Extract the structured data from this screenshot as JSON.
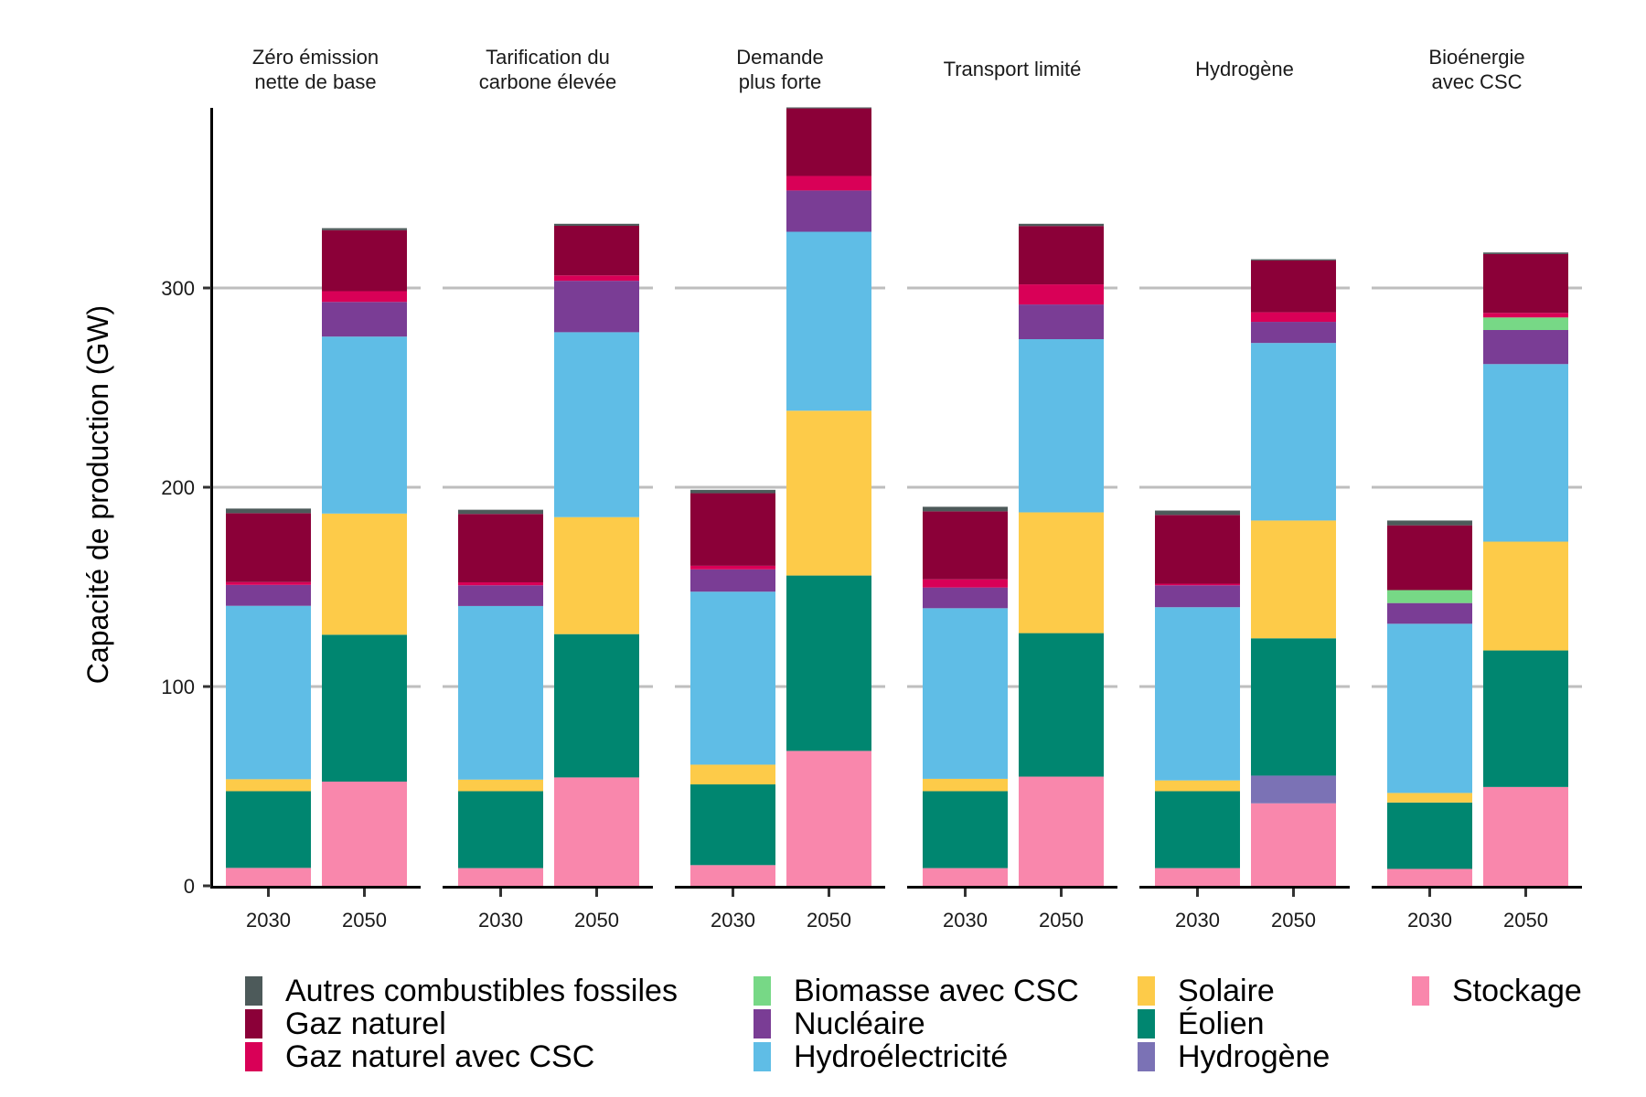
{
  "chart_data": {
    "type": "bar",
    "stacked": true,
    "faceted": true,
    "title": "",
    "xlabel": "",
    "ylabel": "Capacité de production (GW)",
    "ylim": [
      0,
      390
    ],
    "yticks": [
      0,
      100,
      200,
      300
    ],
    "ytick_labels": [
      "0",
      "100",
      "200",
      "300"
    ],
    "grid": "horizontal major",
    "legend_position": "bottom",
    "categories": [
      "2030",
      "2050"
    ],
    "series_order_bottom_to_top": [
      "Stockage",
      "Hydrogène",
      "Éolien",
      "Solaire",
      "Hydroélectricité",
      "Nucléaire",
      "Biomasse avec CSC",
      "Gaz naturel avec CSC",
      "Gaz naturel",
      "Autres combustibles fossiles"
    ],
    "colors": {
      "Autres combustibles fossiles": "#4d5a5a",
      "Gaz naturel": "#8b0038",
      "Gaz naturel avec CSC": "#d90057",
      "Biomasse avec CSC": "#77d886",
      "Nucléaire": "#7a3d95",
      "Hydroélectricité": "#5fbde6",
      "Solaire": "#fdcb49",
      "Éolien": "#008670",
      "Hydrogène": "#7b72b5",
      "Stockage": "#f987ac"
    },
    "facets": [
      {
        "title": [
          "Zéro émission",
          "nette de base"
        ],
        "bars": [
          {
            "x": "2030",
            "values": {
              "Stockage": 9,
              "Hydrogène": 0,
              "Éolien": 38.5,
              "Solaire": 6,
              "Hydroélectricité": 87,
              "Nucléaire": 10.5,
              "Biomasse avec CSC": 0,
              "Gaz naturel avec CSC": 1.4,
              "Gaz naturel": 34.6,
              "Autres combustibles fossiles": 2.3
            }
          },
          {
            "x": "2050",
            "values": {
              "Stockage": 52.3,
              "Hydrogène": 0,
              "Éolien": 73.7,
              "Solaire": 60.8,
              "Hydroélectricité": 88.8,
              "Nucléaire": 17.4,
              "Biomasse avec CSC": 0,
              "Gaz naturel avec CSC": 5.4,
              "Gaz naturel": 30.6,
              "Autres combustibles fossiles": 1
            }
          }
        ]
      },
      {
        "title": [
          "Tarification du",
          "carbone élevée"
        ],
        "bars": [
          {
            "x": "2030",
            "values": {
              "Stockage": 8.9,
              "Hydrogène": 0,
              "Éolien": 38.6,
              "Solaire": 5.8,
              "Hydroélectricité": 87.1,
              "Nucléaire": 10.4,
              "Biomasse avec CSC": 0,
              "Gaz naturel avec CSC": 1.5,
              "Gaz naturel": 34.3,
              "Autres combustibles fossiles": 2.1
            }
          },
          {
            "x": "2050",
            "values": {
              "Stockage": 54.4,
              "Hydrogène": 0,
              "Éolien": 71.9,
              "Solaire": 58.7,
              "Hydroélectricité": 92.8,
              "Nucléaire": 25.8,
              "Biomasse avec CSC": 0,
              "Gaz naturel avec CSC": 2.7,
              "Gaz naturel": 24.9,
              "Autres combustibles fossiles": 1
            }
          }
        ]
      },
      {
        "title": [
          "Demande",
          "plus forte"
        ],
        "bars": [
          {
            "x": "2030",
            "values": {
              "Stockage": 10.4,
              "Hydrogène": 0,
              "Éolien": 40.5,
              "Solaire": 9.9,
              "Hydroélectricité": 86.8,
              "Nucléaire": 11.2,
              "Biomasse avec CSC": 0,
              "Gaz naturel avec CSC": 1.8,
              "Gaz naturel": 36.4,
              "Autres combustibles fossiles": 1.7
            }
          },
          {
            "x": "2050",
            "values": {
              "Stockage": 67.7,
              "Hydrogène": 0,
              "Éolien": 88,
              "Solaire": 82.7,
              "Hydroélectricité": 89.8,
              "Nucléaire": 20.7,
              "Biomasse avec CSC": 0,
              "Gaz naturel avec CSC": 7.3,
              "Gaz naturel": 33.9,
              "Autres combustibles fossiles": 0.5
            }
          }
        ]
      },
      {
        "title": [
          "Transport limité"
        ],
        "bars": [
          {
            "x": "2030",
            "values": {
              "Stockage": 8.9,
              "Hydrogène": 0,
              "Éolien": 38.6,
              "Solaire": 6.2,
              "Hydroélectricité": 85.6,
              "Nucléaire": 10.4,
              "Biomasse avec CSC": 0,
              "Gaz naturel avec CSC": 4.1,
              "Gaz naturel": 34.1,
              "Autres combustibles fossiles": 2.3
            }
          },
          {
            "x": "2050",
            "values": {
              "Stockage": 54.8,
              "Hydrogène": 0,
              "Éolien": 72,
              "Solaire": 60.6,
              "Hydroélectricité": 86.9,
              "Nucléaire": 17.4,
              "Biomasse avec CSC": 0,
              "Gaz naturel avec CSC": 10.1,
              "Gaz naturel": 29.3,
              "Autres combustibles fossiles": 1.1
            }
          }
        ]
      },
      {
        "title": [
          "Hydrogène"
        ],
        "bars": [
          {
            "x": "2030",
            "values": {
              "Stockage": 8.9,
              "Hydrogène": 0,
              "Éolien": 38.6,
              "Solaire": 5.4,
              "Hydroélectricité": 86.9,
              "Nucléaire": 11,
              "Biomasse avec CSC": 0,
              "Gaz naturel avec CSC": 0.8,
              "Gaz naturel": 34.5,
              "Autres combustibles fossiles": 2.2
            }
          },
          {
            "x": "2050",
            "values": {
              "Stockage": 41.4,
              "Hydrogène": 13.9,
              "Éolien": 68.9,
              "Solaire": 59.1,
              "Hydroélectricité": 89.1,
              "Nucléaire": 10.6,
              "Biomasse avec CSC": 0,
              "Gaz naturel avec CSC": 4.8,
              "Gaz naturel": 26,
              "Autres combustibles fossiles": 0.6
            }
          }
        ]
      },
      {
        "title": [
          "Bioénergie",
          "avec CSC"
        ],
        "bars": [
          {
            "x": "2030",
            "values": {
              "Stockage": 8.5,
              "Hydrogène": 0,
              "Éolien": 33.3,
              "Solaire": 4.8,
              "Hydroélectricité": 84.9,
              "Nucléaire": 10.4,
              "Biomasse avec CSC": 6.5,
              "Gaz naturel avec CSC": 0,
              "Gaz naturel": 32.5,
              "Autres combustibles fossiles": 2.4
            }
          },
          {
            "x": "2050",
            "values": {
              "Stockage": 49.6,
              "Hydrogène": 0,
              "Éolien": 68.5,
              "Solaire": 54.6,
              "Hydroélectricité": 89.1,
              "Nucléaire": 17.1,
              "Biomasse avec CSC": 6.3,
              "Gaz naturel avec CSC": 2.3,
              "Gaz naturel": 29.5,
              "Autres combustibles fossiles": 0.8
            }
          }
        ]
      }
    ],
    "legend": [
      {
        "label": "Autres combustibles fossiles",
        "color": "#4d5a5a"
      },
      {
        "label": "Gaz naturel",
        "color": "#8b0038"
      },
      {
        "label": "Gaz naturel avec CSC",
        "color": "#d90057"
      },
      {
        "label": "Biomasse avec CSC",
        "color": "#77d886"
      },
      {
        "label": "Nucléaire",
        "color": "#7a3d95"
      },
      {
        "label": "Hydroélectricité",
        "color": "#5fbde6"
      },
      {
        "label": "Solaire",
        "color": "#fdcb49"
      },
      {
        "label": "Éolien",
        "color": "#008670"
      },
      {
        "label": "Hydrogène",
        "color": "#7b72b5"
      },
      {
        "label": "Stockage",
        "color": "#f987ac"
      }
    ]
  }
}
